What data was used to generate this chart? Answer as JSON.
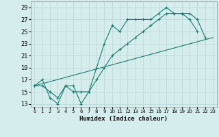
{
  "xlabel": "Humidex (Indice chaleur)",
  "bg_color": "#d5edec",
  "grid_color": "#b8d5d4",
  "line_color": "#1a7a6e",
  "xlim": [
    -0.5,
    23.5
  ],
  "ylim": [
    12.5,
    30.0
  ],
  "xticks": [
    0,
    1,
    2,
    3,
    4,
    5,
    6,
    7,
    8,
    9,
    10,
    11,
    12,
    13,
    14,
    15,
    16,
    17,
    18,
    19,
    20,
    21,
    22,
    23
  ],
  "yticks": [
    13,
    15,
    17,
    19,
    21,
    23,
    25,
    27,
    29
  ],
  "line1_x": [
    0,
    1,
    2,
    3,
    4,
    5,
    6,
    7,
    8,
    9,
    10,
    11,
    12,
    13,
    14,
    15,
    16,
    17,
    18,
    19,
    20,
    21
  ],
  "line1_y": [
    16,
    17,
    14,
    13,
    16,
    16,
    13,
    15,
    19,
    23,
    26,
    25,
    27,
    27,
    27,
    27,
    28,
    29,
    28,
    28,
    27,
    25
  ],
  "line2_x": [
    0,
    1,
    2,
    3,
    4,
    5,
    6,
    7,
    8,
    9,
    10,
    11,
    12,
    13,
    14,
    15,
    16,
    17,
    18,
    19,
    20,
    21,
    22
  ],
  "line2_y": [
    16,
    16,
    15,
    14,
    16,
    15,
    15,
    15,
    17,
    19,
    21,
    22,
    23,
    24,
    25,
    26,
    27,
    28,
    28,
    28,
    28,
    27,
    24
  ],
  "line3_x": [
    0,
    23
  ],
  "line3_y": [
    16,
    24
  ]
}
